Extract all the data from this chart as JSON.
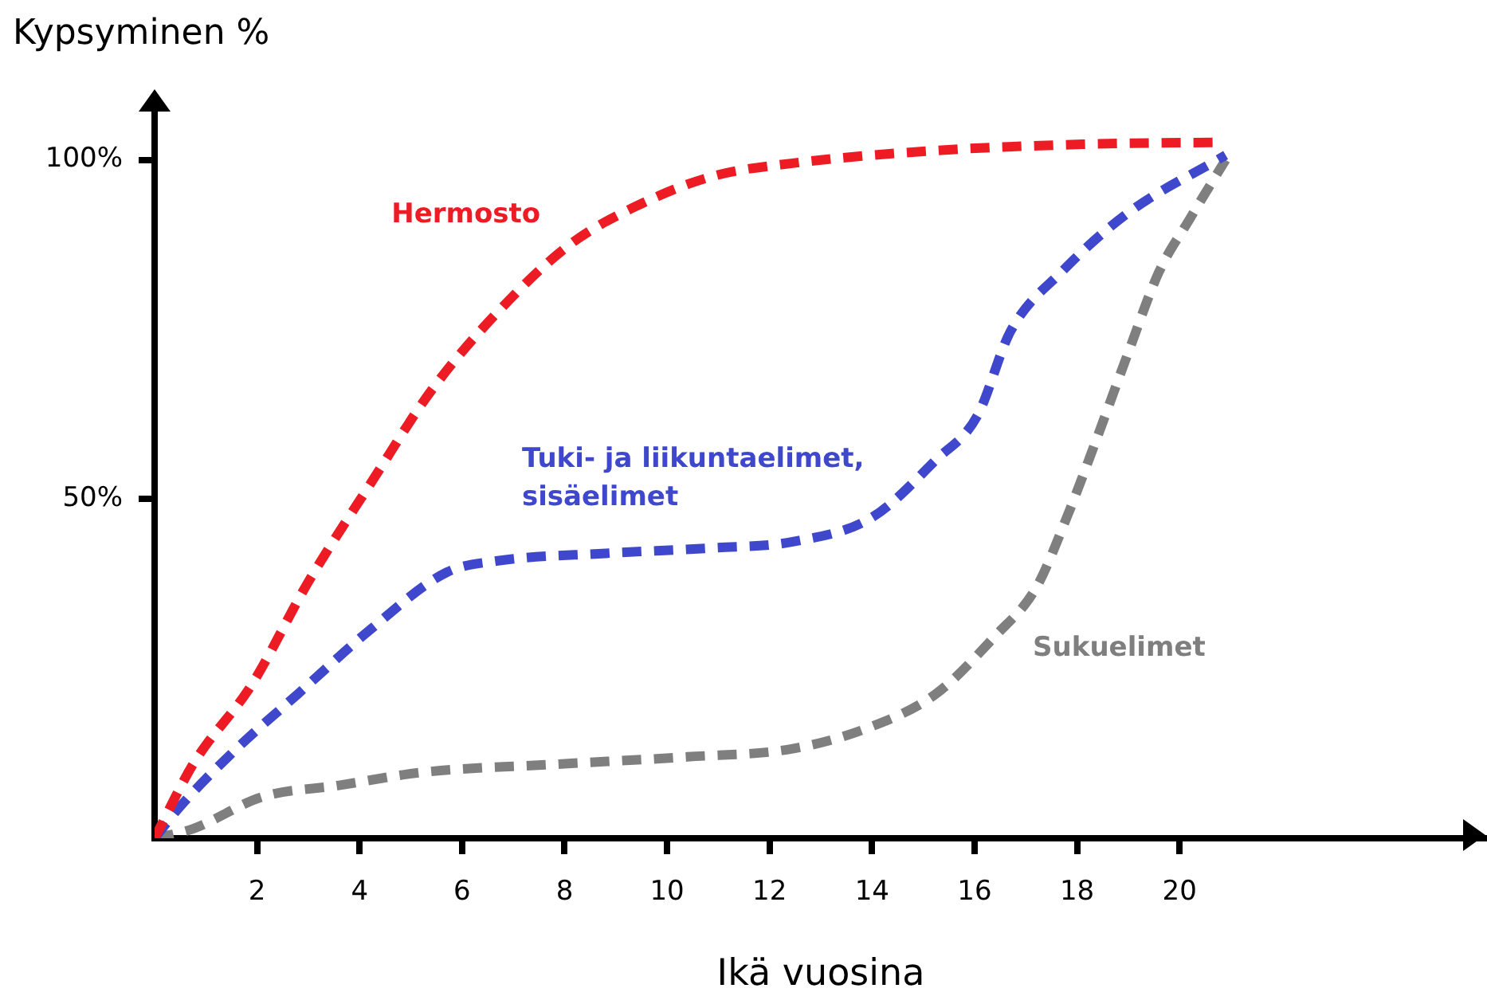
{
  "chart_data": {
    "type": "line",
    "xlabel": "Ikä vuosina",
    "ylabel": "Kypsyminen %",
    "xlim": [
      0,
      26
    ],
    "xticks": [
      2,
      4,
      6,
      8,
      10,
      12,
      14,
      16,
      18,
      20
    ],
    "ylim": [
      0,
      109
    ],
    "yticks": [
      {
        "value": 50,
        "label": "50%"
      },
      {
        "value": 100,
        "label": "100%"
      }
    ],
    "grid": false,
    "legend": false,
    "marker": "none",
    "line_style": "dashed",
    "series": [
      {
        "name": "Hermosto",
        "color": "#ed1c24",
        "x": [
          0,
          0.75,
          1.9,
          3,
          4.25,
          5.4,
          6.75,
          8.1,
          9.35,
          10.9,
          12.45,
          15.3,
          18.1,
          20.8
        ],
        "values": [
          0,
          10.9,
          22.7,
          37.8,
          52.7,
          66,
          78,
          87.5,
          93,
          97.6,
          99.5,
          101.4,
          102.3,
          102.6
        ]
      },
      {
        "name": "Tuki- ja liikuntaelimet, sisäelimet",
        "color": "#3f48cc",
        "x": [
          0,
          0.5,
          1.6,
          2.8,
          4.2,
          5.7,
          6.7,
          8.8,
          10.9,
          12.45,
          14,
          15.25,
          16.05,
          16.7,
          17.7,
          19,
          20.9
        ],
        "values": [
          0,
          4.7,
          13.2,
          21.3,
          30.7,
          39.2,
          40.9,
          42,
          42.8,
          43.7,
          47.3,
          55.8,
          62.2,
          74.7,
          83.5,
          92.2,
          100.7
        ]
      },
      {
        "name": "Sukuelimet",
        "color": "#7f7f7f",
        "x": [
          0,
          0.75,
          2.1,
          3.6,
          5.2,
          7.8,
          10.4,
          12.45,
          14,
          15.25,
          16.4,
          17.2,
          17.8,
          18.35,
          19,
          19.6,
          20.2,
          20.9
        ],
        "values": [
          0,
          1.4,
          6.1,
          7.8,
          9.7,
          10.9,
          12,
          13.2,
          16.5,
          21.3,
          29.8,
          36.9,
          47.3,
          58.2,
          71.6,
          83.5,
          91.3,
          100
        ]
      }
    ]
  }
}
